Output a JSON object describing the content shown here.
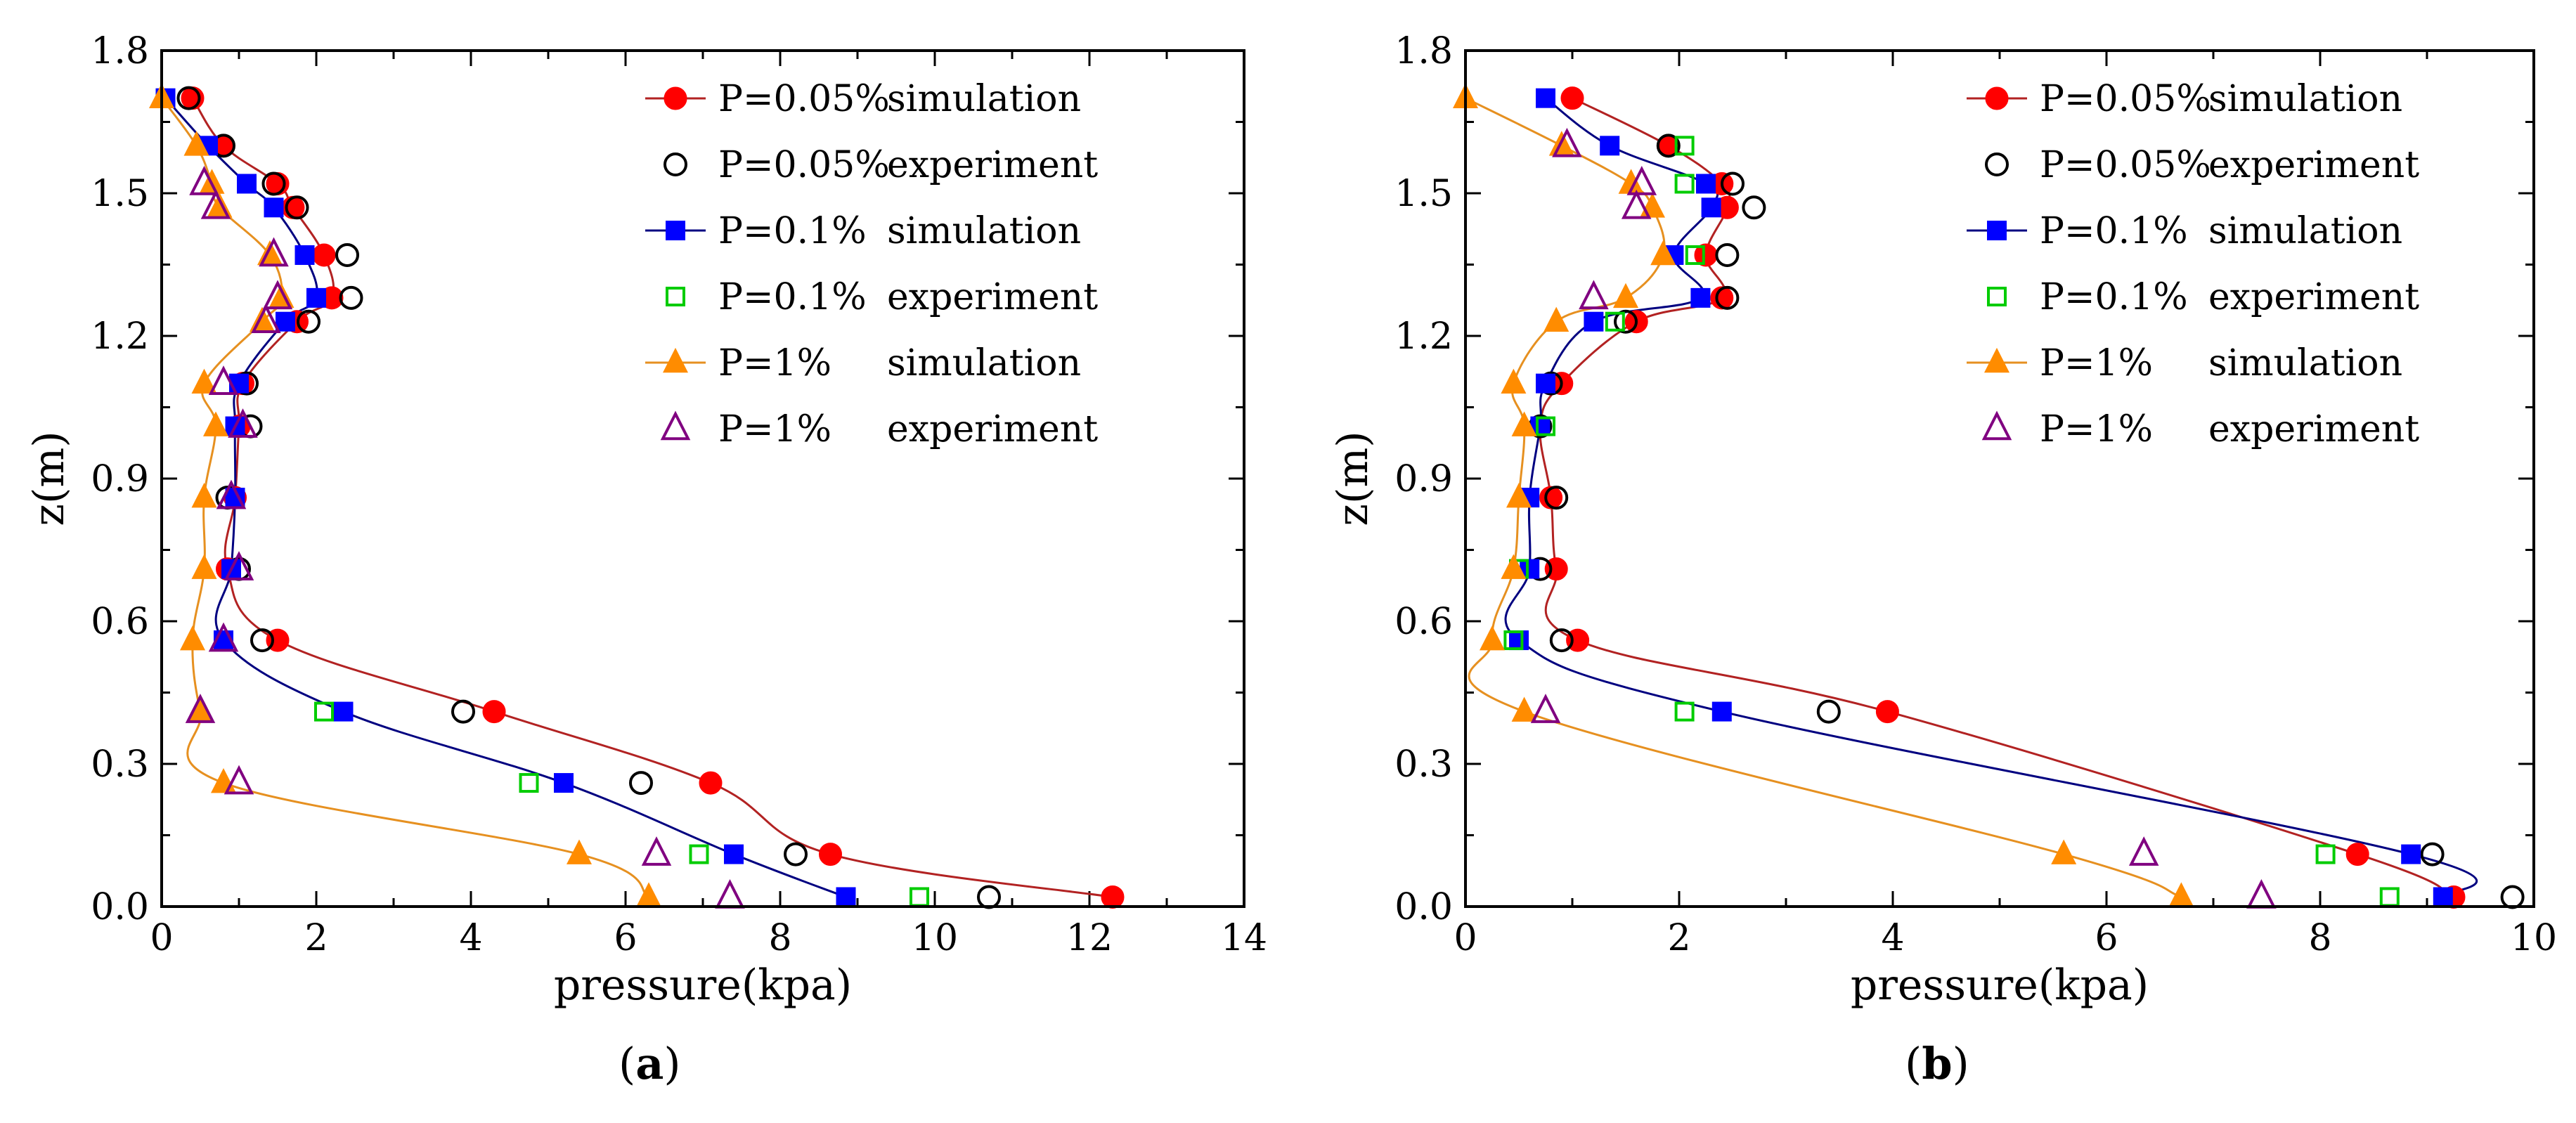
{
  "chart_data": [
    {
      "panel": "(a)",
      "panel_letter": "a",
      "type": "line",
      "xlabel": "pressure(kpa)",
      "ylabel": "z(m)",
      "xlim": [
        0,
        14
      ],
      "ylim": [
        0,
        1.8
      ],
      "xticks": [
        "0",
        "2",
        "4",
        "6",
        "8",
        "10",
        "12",
        "14"
      ],
      "yticks": [
        "0.0",
        "0.3",
        "0.6",
        "0.9",
        "1.2",
        "1.5",
        "1.8"
      ],
      "legend": [
        {
          "p": "P=0.05%",
          "kind": "simulation"
        },
        {
          "p": "P=0.05%",
          "kind": "experiment"
        },
        {
          "p": "P=0.1%",
          "kind": "simulation"
        },
        {
          "p": "P=0.1%",
          "kind": "experiment"
        },
        {
          "p": "P=1%",
          "kind": "simulation"
        },
        {
          "p": "P=1%",
          "kind": "experiment"
        }
      ],
      "series": [
        {
          "name": "P=0.05% simulation",
          "color": "#ff0000",
          "line": "#b22222",
          "marker": "filled-circle",
          "x": [
            12.3,
            8.65,
            7.1,
            4.3,
            1.5,
            0.85,
            0.95,
            1.0,
            1.05,
            1.75,
            2.2,
            2.1,
            1.7,
            1.5,
            0.8,
            0.4
          ],
          "y": [
            0.02,
            0.11,
            0.26,
            0.41,
            0.56,
            0.71,
            0.86,
            1.01,
            1.1,
            1.23,
            1.28,
            1.37,
            1.47,
            1.52,
            1.6,
            1.7
          ]
        },
        {
          "name": "P=0.05% experiment",
          "color": "#000000",
          "marker": "open-circle",
          "x": [
            10.7,
            8.2,
            6.2,
            3.9,
            1.3,
            1.0,
            0.85,
            1.15,
            1.1,
            1.9,
            2.45,
            2.4,
            1.75,
            1.45,
            0.8,
            0.35
          ],
          "y": [
            0.02,
            0.11,
            0.26,
            0.41,
            0.56,
            0.71,
            0.86,
            1.01,
            1.1,
            1.23,
            1.28,
            1.37,
            1.47,
            1.52,
            1.6,
            1.7
          ]
        },
        {
          "name": "P=0.1% simulation",
          "color": "#0000ff",
          "line": "#000080",
          "marker": "filled-square",
          "x": [
            8.85,
            7.4,
            5.2,
            2.35,
            0.8,
            0.9,
            0.95,
            0.95,
            1.0,
            1.6,
            2.0,
            1.85,
            1.45,
            1.1,
            0.6,
            0.05
          ],
          "y": [
            0.02,
            0.11,
            0.26,
            0.41,
            0.56,
            0.71,
            0.86,
            1.01,
            1.1,
            1.23,
            1.28,
            1.37,
            1.47,
            1.52,
            1.6,
            1.7
          ]
        },
        {
          "name": "P=0.1% experiment",
          "color": "#00cc00",
          "marker": "open-square",
          "x": [
            9.8,
            6.95,
            4.75,
            2.1
          ],
          "y": [
            0.02,
            0.11,
            0.26,
            0.41
          ]
        },
        {
          "name": "P=1% simulation",
          "color": "#ff8c00",
          "line": "#e69020",
          "marker": "filled-triangle",
          "x": [
            6.3,
            5.4,
            0.8,
            0.5,
            0.4,
            0.55,
            0.55,
            0.7,
            0.55,
            1.3,
            1.55,
            1.4,
            0.75,
            0.65,
            0.45,
            0.0
          ],
          "y": [
            0.02,
            0.11,
            0.26,
            0.41,
            0.56,
            0.71,
            0.86,
            1.01,
            1.1,
            1.23,
            1.28,
            1.37,
            1.47,
            1.52,
            1.6,
            1.7
          ]
        },
        {
          "name": "P=1% experiment",
          "color": "#800080",
          "marker": "open-triangle",
          "x": [
            7.35,
            6.4,
            1.0,
            0.5,
            0.8,
            1.0,
            0.9,
            1.05,
            0.8,
            1.35,
            1.5,
            1.45,
            0.7,
            0.55
          ],
          "y": [
            0.02,
            0.11,
            0.26,
            0.41,
            0.56,
            0.71,
            0.86,
            1.01,
            1.1,
            1.23,
            1.28,
            1.37,
            1.47,
            1.52
          ]
        }
      ]
    },
    {
      "panel": "(b)",
      "panel_letter": "b",
      "type": "line",
      "xlabel": "pressure(kpa)",
      "ylabel": "z(m)",
      "xlim": [
        0,
        10
      ],
      "ylim": [
        0,
        1.8
      ],
      "xticks": [
        "0",
        "2",
        "4",
        "6",
        "8",
        "10"
      ],
      "yticks": [
        "0.0",
        "0.3",
        "0.6",
        "0.9",
        "1.2",
        "1.5",
        "1.8"
      ],
      "legend": [
        {
          "p": "P=0.05%",
          "kind": "simulation"
        },
        {
          "p": "P=0.05%",
          "kind": "experiment"
        },
        {
          "p": "P=0.1%",
          "kind": "simulation"
        },
        {
          "p": "P=0.1%",
          "kind": "experiment"
        },
        {
          "p": "P=1%",
          "kind": "simulation"
        },
        {
          "p": "P=1%",
          "kind": "experiment"
        }
      ],
      "series": [
        {
          "name": "P=0.05% simulation",
          "color": "#ff0000",
          "line": "#b22222",
          "marker": "filled-circle",
          "x": [
            9.25,
            8.35,
            3.95,
            1.05,
            0.85,
            0.8,
            0.7,
            0.9,
            1.6,
            2.4,
            2.25,
            2.45,
            2.4,
            1.9,
            1.0
          ],
          "y": [
            0.02,
            0.11,
            0.41,
            0.56,
            0.71,
            0.86,
            1.01,
            1.1,
            1.23,
            1.28,
            1.37,
            1.47,
            1.52,
            1.6,
            1.7
          ]
        },
        {
          "name": "P=0.05% experiment",
          "color": "#000000",
          "marker": "open-circle",
          "x": [
            9.8,
            9.05,
            3.4,
            0.9,
            0.7,
            0.85,
            0.7,
            0.8,
            1.5,
            2.45,
            2.45,
            2.7,
            2.5,
            1.9
          ],
          "y": [
            0.02,
            0.11,
            0.41,
            0.56,
            0.71,
            0.86,
            1.01,
            1.1,
            1.23,
            1.28,
            1.37,
            1.47,
            1.52,
            1.6
          ]
        },
        {
          "name": "P=0.1% simulation",
          "color": "#0000ff",
          "line": "#000080",
          "marker": "filled-square",
          "x": [
            9.15,
            8.85,
            2.4,
            0.5,
            0.6,
            0.6,
            0.7,
            0.75,
            1.2,
            2.2,
            1.95,
            2.3,
            2.25,
            1.35,
            0.75
          ],
          "y": [
            0.02,
            0.11,
            0.41,
            0.56,
            0.71,
            0.86,
            1.01,
            1.1,
            1.23,
            1.28,
            1.37,
            1.47,
            1.52,
            1.6,
            1.7
          ]
        },
        {
          "name": "P=0.1% experiment",
          "color": "#00cc00",
          "marker": "open-square",
          "x": [
            8.65,
            8.05,
            2.05,
            0.45,
            0.5,
            0.75,
            1.4,
            2.15,
            2.05,
            2.05
          ],
          "y": [
            0.02,
            0.11,
            0.41,
            0.56,
            0.71,
            1.01,
            1.23,
            1.37,
            1.52,
            1.6
          ]
        },
        {
          "name": "P=1% simulation",
          "color": "#ff8c00",
          "line": "#e69020",
          "marker": "filled-triangle",
          "x": [
            6.7,
            5.6,
            0.55,
            0.25,
            0.45,
            0.5,
            0.55,
            0.45,
            0.85,
            1.5,
            1.85,
            1.75,
            1.55,
            0.9,
            0.0
          ],
          "y": [
            0.02,
            0.11,
            0.41,
            0.56,
            0.71,
            0.86,
            1.01,
            1.1,
            1.23,
            1.28,
            1.37,
            1.47,
            1.52,
            1.6,
            1.7
          ]
        },
        {
          "name": "P=1% experiment",
          "color": "#800080",
          "marker": "open-triangle",
          "x": [
            7.45,
            6.35,
            0.75,
            1.2,
            1.6,
            0.95,
            1.65
          ],
          "y": [
            0.02,
            0.11,
            0.41,
            1.28,
            1.47,
            1.6,
            1.52
          ]
        }
      ]
    }
  ]
}
